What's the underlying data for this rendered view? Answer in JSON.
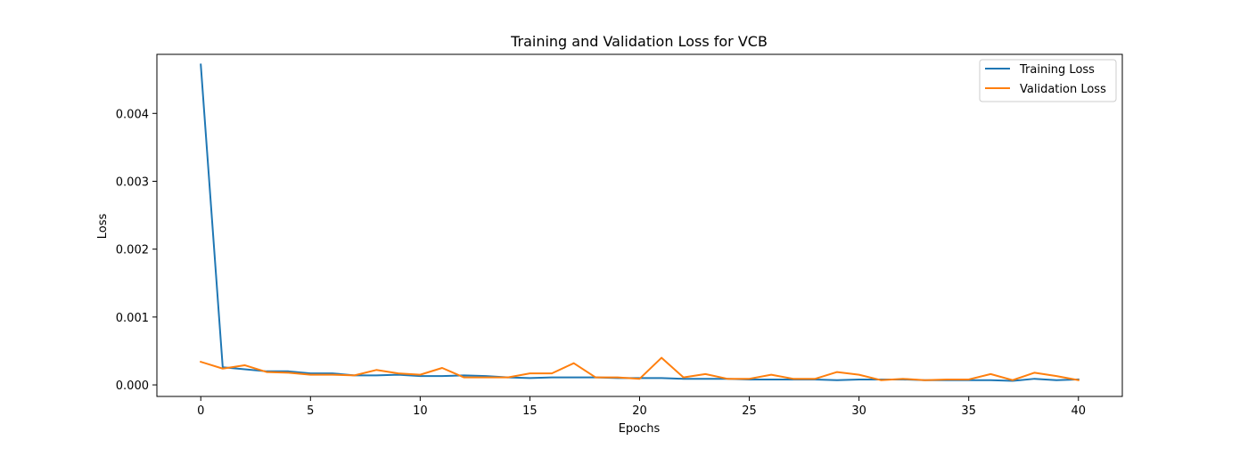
{
  "chart_data": {
    "type": "line",
    "title": "Training and Validation Loss for VCB",
    "xlabel": "Epochs",
    "ylabel": "Loss",
    "xlim": [
      -2,
      42
    ],
    "ylim": [
      -0.00017,
      0.00487
    ],
    "xticks": [
      0,
      5,
      10,
      15,
      20,
      25,
      30,
      35,
      40
    ],
    "xtick_labels": [
      "0",
      "5",
      "10",
      "15",
      "20",
      "25",
      "30",
      "35",
      "40"
    ],
    "yticks": [
      0.0,
      0.001,
      0.002,
      0.003,
      0.004
    ],
    "ytick_labels": [
      "0.000",
      "0.001",
      "0.002",
      "0.003",
      "0.004"
    ],
    "grid": false,
    "legend_position": "top-right",
    "x": [
      0,
      1,
      2,
      3,
      4,
      5,
      6,
      7,
      8,
      9,
      10,
      11,
      12,
      13,
      14,
      15,
      16,
      17,
      18,
      19,
      20,
      21,
      22,
      23,
      24,
      25,
      26,
      27,
      28,
      29,
      30,
      31,
      32,
      33,
      34,
      35,
      36,
      37,
      38,
      39,
      40
    ],
    "series": [
      {
        "name": "Training Loss",
        "color": "#1f77b4",
        "values": [
          0.00472,
          0.00026,
          0.00023,
          0.0002,
          0.0002,
          0.00017,
          0.00017,
          0.00014,
          0.00014,
          0.00015,
          0.00013,
          0.00013,
          0.00014,
          0.00013,
          0.00011,
          0.0001,
          0.00011,
          0.00011,
          0.00011,
          0.0001,
          0.0001,
          0.0001,
          9e-05,
          9e-05,
          9e-05,
          8e-05,
          8e-05,
          8e-05,
          8e-05,
          7e-05,
          8e-05,
          8e-05,
          8e-05,
          7e-05,
          7e-05,
          7e-05,
          7e-05,
          6e-05,
          9e-05,
          7e-05,
          8e-05
        ]
      },
      {
        "name": "Validation Loss",
        "color": "#ff7f0e",
        "values": [
          0.00034,
          0.00024,
          0.00029,
          0.00019,
          0.00018,
          0.00015,
          0.00015,
          0.00014,
          0.00022,
          0.00017,
          0.00015,
          0.00025,
          0.00011,
          0.00011,
          0.00011,
          0.00017,
          0.00017,
          0.00032,
          0.00011,
          0.00011,
          9e-05,
          0.0004,
          0.00011,
          0.00016,
          9e-05,
          9e-05,
          0.00015,
          9e-05,
          9e-05,
          0.00019,
          0.00015,
          7e-05,
          9e-05,
          7e-05,
          8e-05,
          8e-05,
          0.00016,
          7e-05,
          0.00018,
          0.00013,
          7e-05
        ]
      }
    ]
  }
}
